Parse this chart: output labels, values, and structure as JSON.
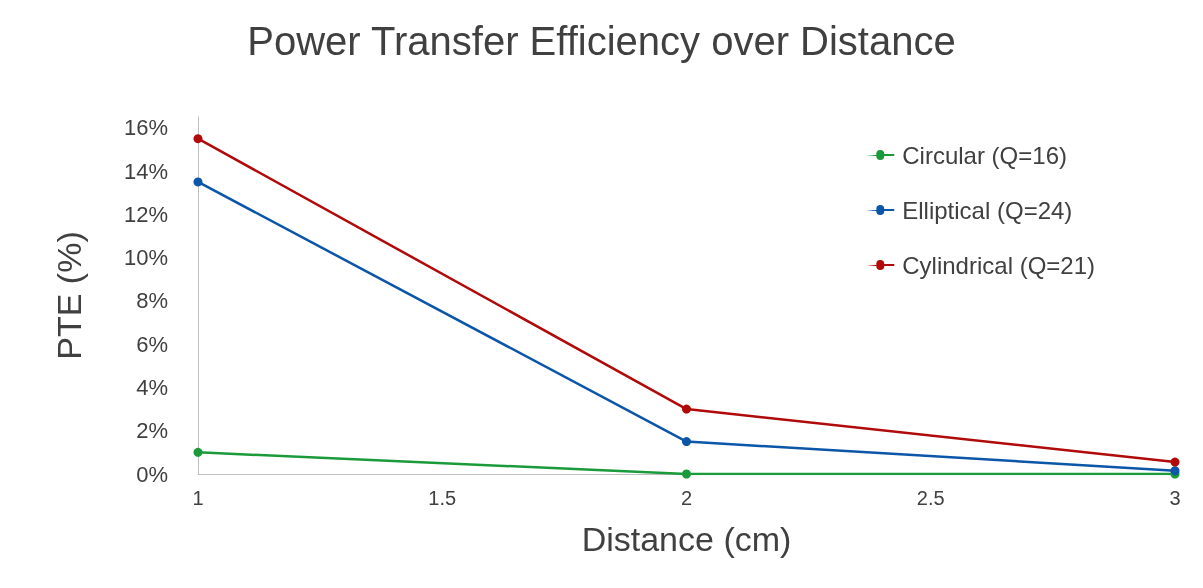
{
  "chart_data": {
    "type": "line",
    "title": "Power Transfer Efficiency over Distance",
    "xlabel": "Distance (cm)",
    "ylabel": "PTE (%)",
    "x": [
      1,
      2,
      3
    ],
    "series": [
      {
        "name": "Circular (Q=16)",
        "color": "#1a9a3a",
        "values": [
          1.0,
          0,
          0
        ]
      },
      {
        "name": "Elliptical (Q=24)",
        "color": "#0b56a8",
        "values": [
          13.5,
          1.5,
          0.15
        ]
      },
      {
        "name": "Cylindrical (Q=21)",
        "color": "#b00a0a",
        "values": [
          15.5,
          3.0,
          0.55
        ]
      }
    ],
    "xlim": [
      1,
      3
    ],
    "xticks": [
      1,
      1.5,
      2,
      2.5,
      3
    ],
    "ylim": [
      0,
      16.5
    ],
    "yticks": [
      {
        "value": 0,
        "label": "0%"
      },
      {
        "value": 2,
        "label": "2%"
      },
      {
        "value": 4,
        "label": "4%"
      },
      {
        "value": 6,
        "label": "6%"
      },
      {
        "value": 8,
        "label": "8%"
      },
      {
        "value": 10,
        "label": "10%"
      },
      {
        "value": 12,
        "label": "12%"
      },
      {
        "value": 14,
        "label": "14%"
      },
      {
        "value": 16,
        "label": "16%"
      }
    ],
    "grid": false,
    "legend": "top right",
    "marker": "circle",
    "line_style": "solid"
  }
}
